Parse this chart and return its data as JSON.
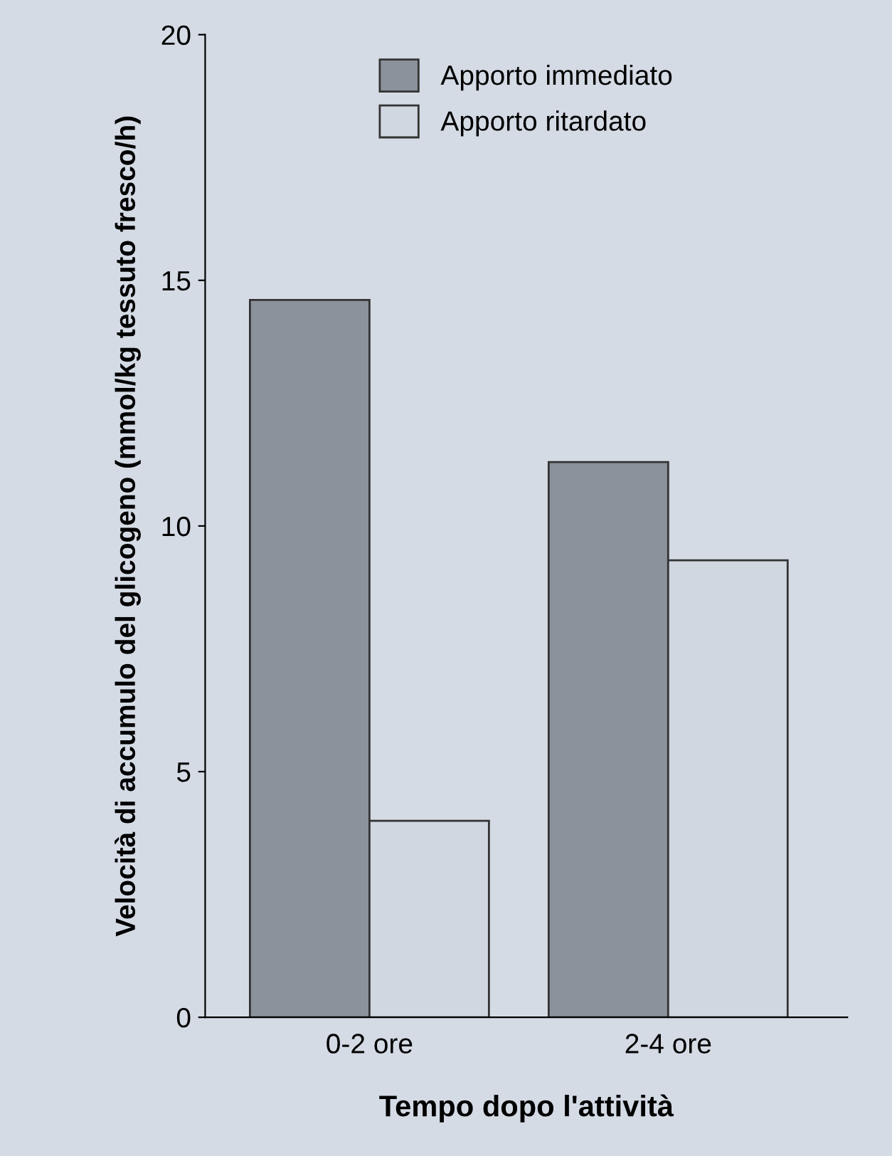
{
  "chart_data": {
    "type": "bar",
    "xlabel": "Tempo dopo l'attività",
    "ylabel": "Velocità di accumulo del glicogeno (mmol/kg tessuto fresco/h)",
    "categories": [
      "0-2 ore",
      "2-4 ore"
    ],
    "series": [
      {
        "name": "Apporto immediato",
        "color": "#8c929b",
        "values": [
          14.6,
          11.3
        ]
      },
      {
        "name": "Apporto ritardato",
        "color": "#d0d7e1",
        "values": [
          4.0,
          9.3
        ]
      }
    ],
    "ylim": [
      0,
      20
    ],
    "yticks": [
      0,
      5,
      10,
      15,
      20
    ],
    "grid": false,
    "legend": "top"
  }
}
